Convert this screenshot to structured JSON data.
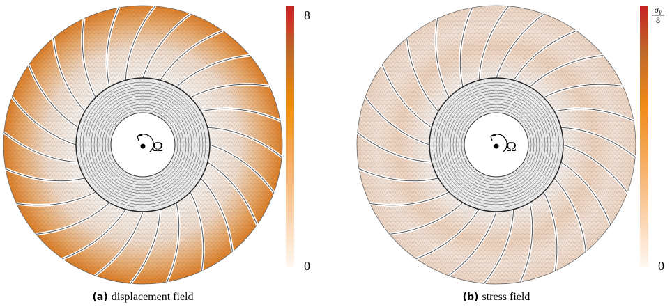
{
  "panels": [
    {
      "label": "(a)",
      "caption": "displacement field",
      "rotation": "Ω",
      "colorbar": {
        "max": "8",
        "min": "0"
      }
    },
    {
      "label": "(b)",
      "caption": "stress field",
      "rotation": "Ω",
      "colorbar": {
        "max_numerator": "σ",
        "max_subscript": "Y",
        "max_denominator": "8",
        "min": "0"
      }
    }
  ]
}
